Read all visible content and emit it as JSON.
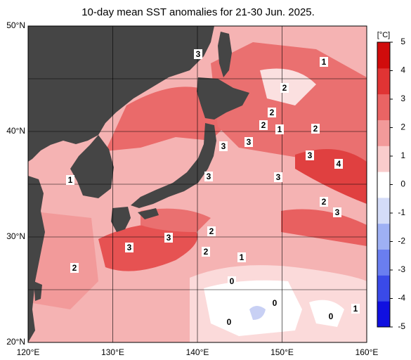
{
  "map": {
    "title": "10-day mean SST anomalies for 21-30 Jun. 2025.",
    "lon_lim": [
      120,
      160
    ],
    "lat_lim": [
      20,
      50
    ],
    "lon_ticks": [
      {
        "value": 120,
        "label": "120°E"
      },
      {
        "value": 130,
        "label": "130°E"
      },
      {
        "value": 140,
        "label": "140°E"
      },
      {
        "value": 150,
        "label": "150°E"
      },
      {
        "value": 160,
        "label": "160°E"
      }
    ],
    "lat_ticks": [
      {
        "value": 50,
        "label": "50°N"
      },
      {
        "value": 40,
        "label": "40°N"
      },
      {
        "value": 30,
        "label": "30°N"
      },
      {
        "value": 20,
        "label": "20°N"
      }
    ],
    "colorbar": {
      "unit": "[°C]",
      "lim": [
        -5,
        5
      ],
      "ticks": [
        5,
        4,
        3,
        2,
        1,
        0,
        -1,
        -2,
        -3,
        -4,
        -5
      ],
      "colors": [
        "#1010e0",
        "#3a4ae8",
        "#6a7ef0",
        "#9eb0f4",
        "#d4dcf8",
        "#ffffff",
        "#f9cccc",
        "#f29a9a",
        "#ea6464",
        "#e03434",
        "#d00c0c"
      ]
    },
    "contour_labels": [
      "3",
      "1",
      "2",
      "2",
      "2",
      "1",
      "2",
      "3",
      "3",
      "3",
      "4",
      "1",
      "3",
      "3",
      "2",
      "3",
      "2",
      "3",
      "3",
      "2",
      "1",
      "2",
      "0",
      "0",
      "1",
      "0",
      "0"
    ]
  }
}
